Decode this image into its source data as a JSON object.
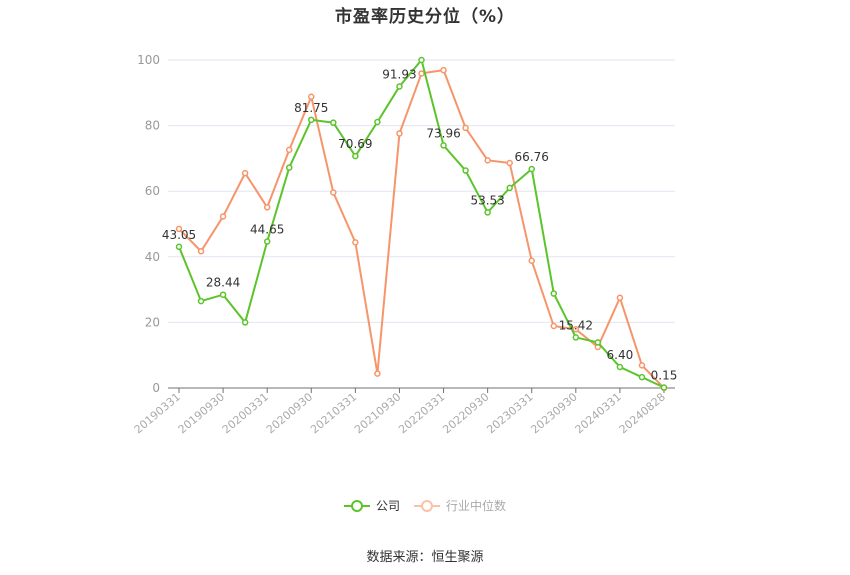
{
  "header": {
    "title": "市盈率历史分位（%）"
  },
  "legend": {
    "items": [
      {
        "label": "公司",
        "color": "#5bc42b"
      },
      {
        "label": "行业中位数",
        "color": "#f7956a"
      }
    ]
  },
  "footer": {
    "source": "数据来源：恒生聚源"
  },
  "chart_data": {
    "type": "line",
    "title": "市盈率历史分位（%）",
    "xlabel": "",
    "ylabel": "",
    "ylim": [
      0,
      100
    ],
    "yticks": [
      0,
      20,
      40,
      60,
      80,
      100
    ],
    "grid": true,
    "legend_position": "bottom",
    "x": [
      "20190331",
      "20190630",
      "20190930",
      "20191231",
      "20200331",
      "20200630",
      "20200930",
      "20201231",
      "20210331",
      "20210630",
      "20210930",
      "20211231",
      "20220331",
      "20220630",
      "20220930",
      "20221231",
      "20230331",
      "20230630",
      "20230930",
      "20231231",
      "20240331",
      "20240630",
      "20240828"
    ],
    "xtick_labels": [
      "20190331",
      "20190930",
      "20200331",
      "20200930",
      "20210331",
      "20210930",
      "20220331",
      "20220930",
      "20230331",
      "20230930",
      "20240331",
      "20240828"
    ],
    "series": [
      {
        "name": "公司",
        "color": "#5bc42b",
        "values": [
          43.05,
          26.5,
          28.44,
          20.0,
          44.65,
          67.2,
          81.75,
          80.9,
          70.69,
          81.1,
          91.93,
          100.0,
          73.96,
          66.3,
          53.53,
          61.0,
          66.76,
          28.8,
          15.42,
          13.9,
          6.4,
          3.3,
          0.15
        ],
        "labeled_points": {
          "0": "43.05",
          "2": "28.44",
          "4": "44.65",
          "6": "81.75",
          "8": "70.69",
          "10": "91.93",
          "12": "73.96",
          "14": "53.53",
          "16": "66.76",
          "18": "15.42",
          "20": "6.40",
          "22": "0.15"
        }
      },
      {
        "name": "行业中位数",
        "color": "#f7956a",
        "values": [
          48.5,
          41.7,
          52.3,
          65.5,
          55.1,
          72.6,
          88.8,
          59.6,
          44.4,
          4.4,
          77.6,
          95.9,
          96.9,
          79.3,
          69.4,
          68.6,
          38.8,
          18.9,
          17.9,
          12.5,
          27.5,
          6.9,
          0.0
        ]
      }
    ]
  }
}
